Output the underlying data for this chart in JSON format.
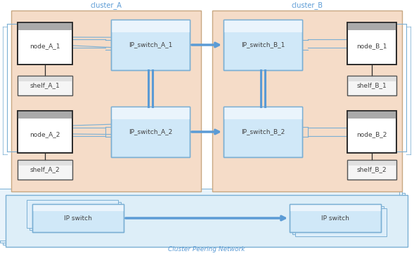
{
  "fig_width": 5.89,
  "fig_height": 3.65,
  "dpi": 100,
  "bg_color": "#ffffff",
  "cluster_bg": "#f5dcc8",
  "cluster_border": "#c8a882",
  "ip_switch_bg": "#d0e8f8",
  "ip_switch_border": "#7aafd4",
  "node_bg": "#ffffff",
  "node_border": "#2a2a2a",
  "shelf_bg": "#f5f5f5",
  "shelf_border": "#555555",
  "peering_bg": "#ddeef8",
  "peering_border": "#7aafd4",
  "arrow_color": "#5b9bd5",
  "arrow_lw": 2.5,
  "conn_lw": 0.8,
  "conn_color": "#7aafd4",
  "text_color": "#404040",
  "label_color": "#5b9bd5",
  "font_size": 6.5,
  "cluster_font_size": 7,
  "peering_font_size": 6.5,
  "cluster_A_label": "cluster_A",
  "cluster_B_label": "cluster_B",
  "peering_label": "Cluster Peering Network"
}
